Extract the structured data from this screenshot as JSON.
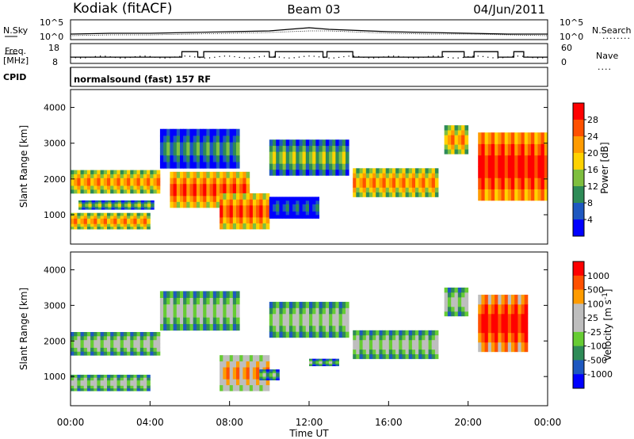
{
  "header": {
    "station": "Kodiak (fitACF)",
    "beam": "Beam 03",
    "date": "04/Jun/2011"
  },
  "left_labels": {
    "nsky": "N.Sky",
    "freq": "Freq.",
    "freq_unit": "[MHz]",
    "cpid": "CPID"
  },
  "right_labels": {
    "nsearch": "N.Search",
    "nave": "Nave"
  },
  "cpid_text": "normalsound (fast) 157 RF",
  "colors": {
    "power": [
      "#0000ff",
      "#1e58c0",
      "#2e8b57",
      "#7fbf3f",
      "#ffd200",
      "#ff9b00",
      "#ff5000",
      "#ff0000"
    ],
    "velocity": [
      "#0000ff",
      "#1e58c0",
      "#2e8b57",
      "#66cc33",
      "#bebebe",
      "#bebebe",
      "#ff9b00",
      "#ff5000",
      "#ff0000"
    ]
  },
  "chart_data": [
    {
      "type": "line",
      "name": "noise",
      "left_axis": {
        "label": "N.Sky",
        "ticks": [
          "10^5",
          "10^0"
        ]
      },
      "right_axis": {
        "label": "N.Search",
        "ticks": [
          "10^5",
          "10^0"
        ]
      },
      "x": [
        0,
        2,
        4,
        6,
        8,
        10,
        12,
        13,
        14,
        16,
        18,
        20,
        22,
        24
      ],
      "series": [
        {
          "name": "N.Sky",
          "values": [
            0.3,
            0.35,
            0.35,
            0.4,
            0.45,
            0.5,
            0.7,
            0.6,
            0.55,
            0.45,
            0.4,
            0.35,
            0.3,
            0.3
          ]
        },
        {
          "name": "N.Search",
          "values": [
            0.2,
            0.25,
            0.25,
            0.3,
            0.35,
            0.4,
            0.5,
            0.5,
            0.45,
            0.35,
            0.3,
            0.3,
            0.25,
            0.2
          ]
        }
      ]
    },
    {
      "type": "line",
      "name": "frequency_nave",
      "left_axis": {
        "label": "Freq. [MHz]",
        "ticks": [
          "18",
          "8"
        ]
      },
      "right_axis": {
        "label": "Nave",
        "ticks": [
          "60",
          "0"
        ]
      },
      "x": [
        0,
        5.2,
        5.6,
        6.1,
        6.4,
        6.7,
        10,
        10.3,
        12.7,
        12.9,
        14.2,
        18.7,
        19.8,
        20.3,
        21.5,
        22.3,
        22.8
      ],
      "series": [
        {
          "name": "Freq.",
          "values": [
            11,
            11,
            14,
            14,
            11,
            14,
            11,
            14,
            11,
            14,
            11,
            14,
            11,
            14,
            11,
            14,
            11
          ]
        },
        {
          "name": "Nave",
          "values": [
            12,
            12,
            12,
            12,
            12,
            12,
            12,
            12,
            12,
            12,
            12,
            12,
            12,
            12,
            12,
            12,
            12
          ]
        }
      ]
    },
    {
      "type": "heatmap",
      "name": "power",
      "xlabel": "",
      "ylabel": "Slant Range [km]",
      "yticks": [
        1000,
        2000,
        3000,
        4000
      ],
      "ylim": [
        180,
        4500
      ],
      "xlim": [
        0,
        24
      ],
      "colorbar": {
        "label": "Power [dB]",
        "ticks": [
          4,
          8,
          12,
          16,
          20,
          24,
          28
        ]
      },
      "bands": [
        {
          "t0": 0.0,
          "t1": 4.5,
          "r0": 1600,
          "r1": 2250,
          "level": 5
        },
        {
          "t0": 0.0,
          "t1": 4.0,
          "r0": 600,
          "r1": 1050,
          "level": 5
        },
        {
          "t0": 0.4,
          "t1": 4.2,
          "r0": 1150,
          "r1": 1400,
          "level": 3
        },
        {
          "t0": 4.5,
          "t1": 8.5,
          "r0": 2300,
          "r1": 3400,
          "level": 2
        },
        {
          "t0": 5.0,
          "t1": 9.0,
          "r0": 1200,
          "r1": 2200,
          "level": 6
        },
        {
          "t0": 7.5,
          "t1": 10.0,
          "r0": 600,
          "r1": 1600,
          "level": 6
        },
        {
          "t0": 10.0,
          "t1": 12.5,
          "r0": 900,
          "r1": 1500,
          "level": 1
        },
        {
          "t0": 10.0,
          "t1": 14.0,
          "r0": 2100,
          "r1": 3100,
          "level": 3
        },
        {
          "t0": 14.2,
          "t1": 18.5,
          "r0": 1500,
          "r1": 2300,
          "level": 5
        },
        {
          "t0": 18.8,
          "t1": 20.0,
          "r0": 2700,
          "r1": 3500,
          "level": 5
        },
        {
          "t0": 20.5,
          "t1": 24.0,
          "r0": 1400,
          "r1": 3300,
          "level": 7
        }
      ]
    },
    {
      "type": "heatmap",
      "name": "velocity",
      "xlabel": "Time UT",
      "ylabel": "Slant Range [km]",
      "xticks": [
        "00:00",
        "04:00",
        "08:00",
        "12:00",
        "16:00",
        "20:00",
        "00:00"
      ],
      "yticks": [
        1000,
        2000,
        3000,
        4000
      ],
      "ylim": [
        180,
        4500
      ],
      "xlim": [
        0,
        24
      ],
      "colorbar": {
        "label": "Velocity [m s^-1]",
        "ticks": [
          1000,
          500,
          100,
          25,
          -25,
          -100,
          -500,
          -1000
        ]
      },
      "bands": [
        {
          "t0": 0.0,
          "t1": 4.5,
          "r0": 1600,
          "r1": 2250,
          "level": 4
        },
        {
          "t0": 0.0,
          "t1": 4.0,
          "r0": 600,
          "r1": 1050,
          "level": 4
        },
        {
          "t0": 4.5,
          "t1": 8.5,
          "r0": 2300,
          "r1": 3400,
          "level": 4
        },
        {
          "t0": 7.5,
          "t1": 10.0,
          "r0": 600,
          "r1": 1600,
          "level": 6
        },
        {
          "t0": 9.5,
          "t1": 10.5,
          "r0": 900,
          "r1": 1200,
          "level": 3
        },
        {
          "t0": 12.0,
          "t1": 13.5,
          "r0": 1300,
          "r1": 1500,
          "level": 3
        },
        {
          "t0": 10.0,
          "t1": 14.0,
          "r0": 2100,
          "r1": 3100,
          "level": 4
        },
        {
          "t0": 14.2,
          "t1": 18.5,
          "r0": 1500,
          "r1": 2300,
          "level": 4
        },
        {
          "t0": 18.8,
          "t1": 20.0,
          "r0": 2700,
          "r1": 3500,
          "level": 4
        },
        {
          "t0": 20.5,
          "t1": 23.0,
          "r0": 1700,
          "r1": 3300,
          "level": 8
        }
      ]
    }
  ]
}
